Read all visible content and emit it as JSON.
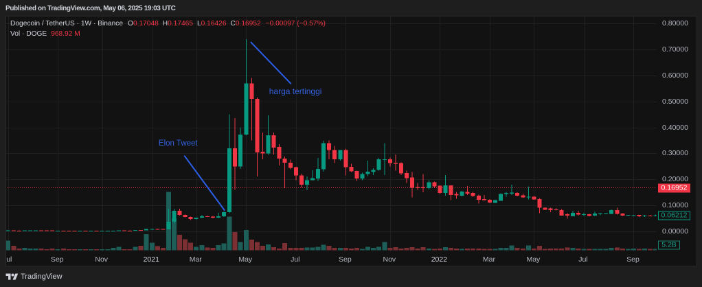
{
  "header": {
    "published": "Published on TradingView.com, May 06, 2025 19:03 UTC"
  },
  "legend": {
    "symbol": "Dogecoin / TetherUS · 1W · Binance",
    "ohlc": [
      {
        "key": "O",
        "value": "0.17048"
      },
      {
        "key": "H",
        "value": "0.17465"
      },
      {
        "key": "L",
        "value": "0.16426"
      },
      {
        "key": "C",
        "value": "0.16952"
      }
    ],
    "change": "−0.00097 (−0.57%)",
    "volume_label": "Vol · DOGE",
    "volume_value": "968.92 M"
  },
  "footer": {
    "brand": "TradingView",
    "logo_icon": "tradingview-logo"
  },
  "colors": {
    "up": "#089981",
    "down": "#f23645",
    "volume_up": "#1d5f58",
    "volume_down": "#7c3034",
    "grid": "#202020",
    "annotation": "#2c5fe8",
    "last_price": "#f23645"
  },
  "chart_data": {
    "type": "candlestick",
    "title": "Dogecoin / TetherUS · 1W · Binance",
    "interval": "1W",
    "exchange": "Binance",
    "ylabel": "Price (USDT)",
    "ylim": [
      0,
      0.8
    ],
    "grid": true,
    "y_ticks": [
      {
        "label": "0.80000",
        "value": 0.8
      },
      {
        "label": "0.70000",
        "value": 0.7
      },
      {
        "label": "0.60000",
        "value": 0.6
      },
      {
        "label": "0.50000",
        "value": 0.5
      },
      {
        "label": "0.40000",
        "value": 0.4
      },
      {
        "label": "0.30000",
        "value": 0.3
      },
      {
        "label": "0.20000",
        "value": 0.2
      },
      {
        "label": "0.10000",
        "value": 0.1
      },
      {
        "label": "0.00000",
        "value": 0.0
      }
    ],
    "x_ticks": [
      {
        "label": "Jul",
        "index": 0
      },
      {
        "label": "Sep",
        "index": 9
      },
      {
        "label": "Nov",
        "index": 17
      },
      {
        "label": "2021",
        "index": 26,
        "year": true
      },
      {
        "label": "Mar",
        "index": 34
      },
      {
        "label": "May",
        "index": 43
      },
      {
        "label": "Jul",
        "index": 52
      },
      {
        "label": "Sep",
        "index": 61
      },
      {
        "label": "Nov",
        "index": 69
      },
      {
        "label": "2022",
        "index": 78,
        "year": true
      },
      {
        "label": "Mar",
        "index": 87
      },
      {
        "label": "May",
        "index": 95
      },
      {
        "label": "Jul",
        "index": 104
      },
      {
        "label": "Sep",
        "index": 113
      }
    ],
    "last_price": {
      "value": 0.16952,
      "label": "0.16952"
    },
    "last_visible_close": {
      "value": 0.06212,
      "label": "0.06212"
    },
    "last_volume_label": "5.2B",
    "candle_fields": [
      "open",
      "high",
      "low",
      "close",
      "volume_billions"
    ],
    "candles": [
      [
        0.0023,
        0.0047,
        0.0023,
        0.0034,
        36
      ],
      [
        0.0034,
        0.0036,
        0.0031,
        0.0032,
        17
      ],
      [
        0.0032,
        0.0034,
        0.003,
        0.0031,
        6
      ],
      [
        0.0031,
        0.0035,
        0.003,
        0.0034,
        8
      ],
      [
        0.0034,
        0.0037,
        0.0032,
        0.0035,
        6
      ],
      [
        0.0035,
        0.0037,
        0.0033,
        0.0036,
        6
      ],
      [
        0.0036,
        0.0037,
        0.0033,
        0.0035,
        6
      ],
      [
        0.0035,
        0.0036,
        0.0033,
        0.0034,
        3.5
      ],
      [
        0.0034,
        0.0035,
        0.0028,
        0.003,
        6
      ],
      [
        0.003,
        0.0032,
        0.0028,
        0.0031,
        3.5
      ],
      [
        0.0031,
        0.0032,
        0.0029,
        0.003,
        6
      ],
      [
        0.003,
        0.0031,
        0.0026,
        0.0027,
        3.5
      ],
      [
        0.0027,
        0.0028,
        0.0026,
        0.0026,
        3.5
      ],
      [
        0.0026,
        0.0028,
        0.0026,
        0.0027,
        3.5
      ],
      [
        0.0027,
        0.0028,
        0.0026,
        0.0026,
        3.5
      ],
      [
        0.0026,
        0.0028,
        0.0026,
        0.0027,
        3.5
      ],
      [
        0.0027,
        0.0028,
        0.0025,
        0.0026,
        3.5
      ],
      [
        0.0026,
        0.0028,
        0.0025,
        0.0027,
        3.5
      ],
      [
        0.0027,
        0.0029,
        0.0026,
        0.0028,
        3.5
      ],
      [
        0.0028,
        0.0033,
        0.0027,
        0.0032,
        8
      ],
      [
        0.0032,
        0.0037,
        0.003,
        0.0034,
        12
      ],
      [
        0.0034,
        0.0035,
        0.0032,
        0.0033,
        3.5
      ],
      [
        0.0033,
        0.0034,
        0.0031,
        0.0032,
        3.5
      ],
      [
        0.0032,
        0.005,
        0.0031,
        0.0048,
        12
      ],
      [
        0.0048,
        0.0055,
        0.004,
        0.0046,
        17
      ],
      [
        0.0046,
        0.0106,
        0.0045,
        0.0095,
        60
      ],
      [
        0.0095,
        0.0107,
        0.008,
        0.0098,
        28
      ],
      [
        0.0098,
        0.0103,
        0.0085,
        0.0088,
        15
      ],
      [
        0.0088,
        0.0092,
        0.0071,
        0.0086,
        8
      ],
      [
        0.0086,
        0.0876,
        0.0075,
        0.0371,
        220
      ],
      [
        0.0371,
        0.087,
        0.03,
        0.079,
        120
      ],
      [
        0.079,
        0.087,
        0.061,
        0.063,
        58
      ],
      [
        0.063,
        0.065,
        0.054,
        0.055,
        41
      ],
      [
        0.055,
        0.057,
        0.043,
        0.048,
        28
      ],
      [
        0.048,
        0.053,
        0.046,
        0.053,
        12
      ],
      [
        0.053,
        0.063,
        0.051,
        0.058,
        19
      ],
      [
        0.058,
        0.061,
        0.056,
        0.057,
        10
      ],
      [
        0.057,
        0.059,
        0.05,
        0.053,
        8
      ],
      [
        0.053,
        0.071,
        0.052,
        0.058,
        19
      ],
      [
        0.058,
        0.076,
        0.056,
        0.074,
        26
      ],
      [
        0.074,
        0.45,
        0.07,
        0.32,
        127
      ],
      [
        0.32,
        0.436,
        0.16,
        0.25,
        69
      ],
      [
        0.25,
        0.4,
        0.24,
        0.373,
        31
      ],
      [
        0.373,
        0.74,
        0.37,
        0.57,
        76
      ],
      [
        0.57,
        0.59,
        0.35,
        0.51,
        40
      ],
      [
        0.51,
        0.515,
        0.211,
        0.304,
        31
      ],
      [
        0.306,
        0.38,
        0.277,
        0.3,
        16
      ],
      [
        0.3,
        0.447,
        0.295,
        0.37,
        22
      ],
      [
        0.37,
        0.38,
        0.296,
        0.322,
        11
      ],
      [
        0.325,
        0.3355,
        0.254,
        0.28,
        6
      ],
      [
        0.28,
        0.288,
        0.166,
        0.264,
        27
      ],
      [
        0.264,
        0.2756,
        0.2386,
        0.245,
        8.6
      ],
      [
        0.2465,
        0.249,
        0.197,
        0.2148,
        8.6
      ],
      [
        0.2148,
        0.222,
        0.169,
        0.1797,
        8.6
      ],
      [
        0.1797,
        0.212,
        0.159,
        0.1974,
        10
      ],
      [
        0.1974,
        0.235,
        0.197,
        0.2042,
        10
      ],
      [
        0.2034,
        0.2827,
        0.1947,
        0.2404,
        13
      ],
      [
        0.2386,
        0.349,
        0.2299,
        0.34,
        20
      ],
      [
        0.34,
        0.3506,
        0.278,
        0.3136,
        16
      ],
      [
        0.3136,
        0.3284,
        0.2634,
        0.278,
        8.6
      ],
      [
        0.278,
        0.3136,
        0.2721,
        0.3136,
        8.6
      ],
      [
        0.3136,
        0.3178,
        0.2148,
        0.2476,
        8.6
      ],
      [
        0.249,
        0.2597,
        0.228,
        0.2317,
        6
      ],
      [
        0.2325,
        0.2343,
        0.1947,
        0.2034,
        8.6
      ],
      [
        0.2034,
        0.2254,
        0.1974,
        0.2211,
        4.4
      ],
      [
        0.2211,
        0.2721,
        0.2121,
        0.2299,
        13
      ],
      [
        0.228,
        0.243,
        0.2166,
        0.237,
        8.6
      ],
      [
        0.237,
        0.2827,
        0.2343,
        0.2774,
        13
      ],
      [
        0.2748,
        0.34,
        0.2166,
        0.278,
        31
      ],
      [
        0.278,
        0.2845,
        0.249,
        0.2634,
        8.6
      ],
      [
        0.2642,
        0.2959,
        0.2343,
        0.2608,
        11
      ],
      [
        0.2634,
        0.265,
        0.2166,
        0.2227,
        6
      ],
      [
        0.2246,
        0.2343,
        0.1857,
        0.2053,
        8.6
      ],
      [
        0.2069,
        0.228,
        0.1303,
        0.1683,
        11
      ],
      [
        0.1717,
        0.1857,
        0.1593,
        0.1683,
        6
      ],
      [
        0.17,
        0.2211,
        0.1506,
        0.1664,
        11
      ],
      [
        0.1664,
        0.1963,
        0.1612,
        0.1884,
        6
      ],
      [
        0.1884,
        0.192,
        0.166,
        0.1725,
        4.4
      ],
      [
        0.1752,
        0.177,
        0.1445,
        0.148,
        6
      ],
      [
        0.148,
        0.2166,
        0.1374,
        0.177,
        11
      ],
      [
        0.177,
        0.177,
        0.1197,
        0.14,
        8.6
      ],
      [
        0.1435,
        0.1524,
        0.126,
        0.1392,
        6
      ],
      [
        0.1374,
        0.156,
        0.135,
        0.1532,
        4.4
      ],
      [
        0.1524,
        0.1744,
        0.14,
        0.1453,
        6
      ],
      [
        0.148,
        0.1524,
        0.133,
        0.1355,
        6
      ],
      [
        0.1374,
        0.1419,
        0.1065,
        0.1215,
        6
      ],
      [
        0.1242,
        0.14,
        0.1189,
        0.1197,
        4.4
      ],
      [
        0.1215,
        0.1242,
        0.1083,
        0.111,
        4.4
      ],
      [
        0.1102,
        0.123,
        0.11,
        0.1197,
        4.4
      ],
      [
        0.1181,
        0.146,
        0.117,
        0.1445,
        8.6
      ],
      [
        0.1445,
        0.1524,
        0.133,
        0.148,
        8.6
      ],
      [
        0.1453,
        0.1797,
        0.14,
        0.1487,
        18
      ],
      [
        0.148,
        0.151,
        0.135,
        0.1374,
        8.6
      ],
      [
        0.1392,
        0.145,
        0.129,
        0.1313,
        6
      ],
      [
        0.1302,
        0.1725,
        0.1223,
        0.1329,
        18
      ],
      [
        0.1329,
        0.136,
        0.122,
        0.1223,
        6
      ],
      [
        0.1242,
        0.1287,
        0.0695,
        0.0906,
        16
      ],
      [
        0.0917,
        0.093,
        0.082,
        0.0827,
        4.4
      ],
      [
        0.088,
        0.0906,
        0.074,
        0.0819,
        6
      ],
      [
        0.085,
        0.09,
        0.08,
        0.083,
        6
      ],
      [
        0.0819,
        0.086,
        0.06,
        0.0608,
        6
      ],
      [
        0.066,
        0.0695,
        0.0494,
        0.0608,
        10
      ],
      [
        0.0581,
        0.079,
        0.0581,
        0.0713,
        8.6
      ],
      [
        0.0713,
        0.079,
        0.061,
        0.0653,
        6
      ],
      [
        0.065,
        0.071,
        0.06,
        0.0665,
        4.4
      ],
      [
        0.066,
        0.067,
        0.058,
        0.06,
        4.4
      ],
      [
        0.0608,
        0.075,
        0.059,
        0.0687,
        5
      ],
      [
        0.068,
        0.071,
        0.062,
        0.0695,
        5
      ],
      [
        0.069,
        0.07,
        0.066,
        0.07,
        4.4
      ],
      [
        0.0668,
        0.085,
        0.066,
        0.0819,
        8.6
      ],
      [
        0.0819,
        0.0906,
        0.0642,
        0.0668,
        10
      ],
      [
        0.0687,
        0.07,
        0.059,
        0.0608,
        6
      ],
      [
        0.062,
        0.064,
        0.059,
        0.063,
        4.4
      ],
      [
        0.062,
        0.064,
        0.059,
        0.0625,
        6
      ],
      [
        0.063,
        0.064,
        0.055,
        0.058,
        4.4
      ],
      [
        0.058,
        0.064,
        0.056,
        0.061,
        6
      ],
      [
        0.061,
        0.063,
        0.058,
        0.06,
        4.4
      ],
      [
        0.059,
        0.065,
        0.058,
        0.0621,
        5.2
      ]
    ],
    "annotations": [
      {
        "text": "Elon Tweet",
        "text_anchor": {
          "index": 27.2,
          "price": 0.3276
        },
        "line": {
          "from": {
            "index": 31.9,
            "price": 0.2898
          },
          "to": {
            "index": 39.08,
            "price": 0.0819
          }
        }
      },
      {
        "text": "harga tertinggi",
        "text_anchor": {
          "index": 47.15,
          "price": 0.528
        },
        "line": {
          "from": {
            "index": 43.9,
            "price": 0.7273
          },
          "to": {
            "index": 51.07,
            "price": 0.5688
          }
        }
      }
    ]
  }
}
